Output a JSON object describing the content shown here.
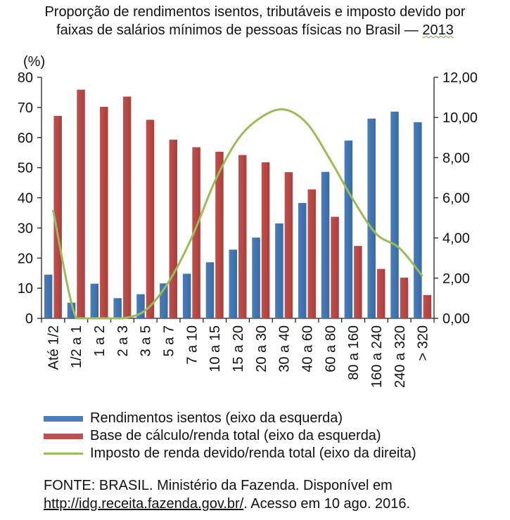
{
  "title_line1": "Proporção de rendimentos isentos, tributáveis e imposto devido por",
  "title_line2": "faixas de salários mínimos de pessoas físicas no Brasil —",
  "title_year": "2013",
  "colors": {
    "isentos": "#4a7ebb",
    "base": "#c0504d",
    "imposto": "#9bbb59"
  },
  "chart_data": {
    "type": "bar",
    "y_unit_label": "(%)",
    "categories": [
      "Até 1/2",
      "1/2 a 1",
      "1 a 2",
      "2 a 3",
      "3 a 5",
      "5 a 7",
      "7 a 10",
      "10 a 15",
      "15 a 20",
      "20 a 30",
      "30 a 40",
      "40 a 60",
      "60 a 80",
      "80 a 160",
      "160 a 240",
      "240 a 320",
      "> 320"
    ],
    "ylim_left": [
      0,
      80
    ],
    "ylim_right": [
      0,
      12
    ],
    "yticks_left": [
      "0",
      "10",
      "20",
      "30",
      "40",
      "50",
      "60",
      "70",
      "80"
    ],
    "yticks_right": [
      "0,00",
      "2,00",
      "4,00",
      "6,00",
      "8,00",
      "10,00",
      "12,00"
    ],
    "grid": false,
    "legend_position": "bottom",
    "series": [
      {
        "name": "Rendimentos isentos (eixo da esquerda)",
        "type": "bar",
        "axis": "left",
        "values": [
          14.5,
          5.2,
          11.5,
          6.7,
          8.0,
          11.6,
          14.8,
          18.6,
          22.8,
          26.8,
          31.5,
          38.3,
          48.6,
          59.0,
          66.3,
          68.6,
          65.1
        ]
      },
      {
        "name": "Base de cálculo/renda total (eixo da esquerda)",
        "type": "bar",
        "axis": "left",
        "values": [
          67.2,
          75.9,
          70.2,
          73.6,
          65.9,
          59.3,
          56.8,
          55.3,
          54.2,
          51.8,
          48.5,
          42.8,
          33.7,
          24.0,
          16.4,
          13.5,
          7.7
        ]
      },
      {
        "name": "Imposto de renda devido/renda total (eixo da direita)",
        "type": "line",
        "axis": "right",
        "values": [
          5.4,
          0.0,
          0.0,
          0.0,
          0.4,
          1.8,
          4.0,
          6.8,
          8.9,
          10.0,
          10.4,
          9.7,
          7.9,
          5.9,
          4.2,
          3.5,
          2.1
        ]
      }
    ]
  },
  "source_prefix": "FONTE: BRASIL. Ministério da Fazenda. Disponível em",
  "source_url": "http://idg.receita.fazenda.gov.br/",
  "source_suffix": ". Acesso em 10 ago. 2016."
}
